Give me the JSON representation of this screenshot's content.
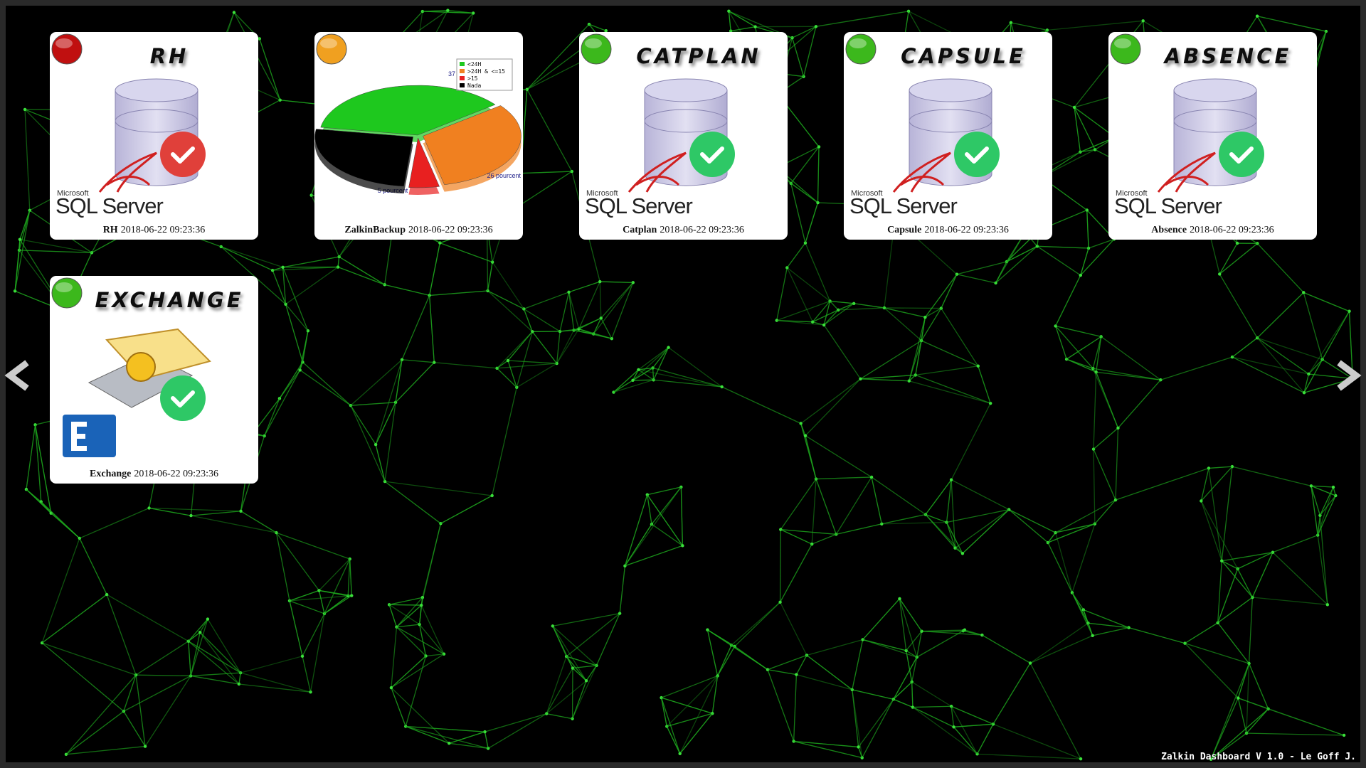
{
  "tiles": [
    {
      "status": "#c01010",
      "title": "RH",
      "icon": "sql",
      "check": "#e0403a",
      "logo": {
        "brand": "Microsoft",
        "product": "SQL Server"
      },
      "name": "RH",
      "timestamp": "2018-06-22 09:23:36"
    },
    {
      "status": "#f0a020",
      "icon": "pie",
      "name": "ZalkinBackup",
      "timestamp": "2018-06-22 09:23:36",
      "chart": {
        "type": "pie",
        "slices": [
          {
            "name": "<24H",
            "color": "#1ec81e",
            "value": 37,
            "value_label": "37"
          },
          {
            "name": ">24H & <=15",
            "color": "#f08020",
            "value": 32
          },
          {
            "name": ">15",
            "color": "#e82020",
            "value": 5,
            "value_label": "5 pourcent"
          },
          {
            "name": "Nada",
            "color": "#000000",
            "value": 26,
            "value_label": "26 pourcent"
          }
        ]
      }
    },
    {
      "status": "#3cb81c",
      "title": "CATPLAN",
      "icon": "sql",
      "check": "#2ec866",
      "logo": {
        "brand": "Microsoft",
        "product": "SQL Server"
      },
      "name": "Catplan",
      "timestamp": "2018-06-22 09:23:36"
    },
    {
      "status": "#3cb81c",
      "title": "CAPSULE",
      "icon": "sql",
      "check": "#2ec866",
      "logo": {
        "brand": "Microsoft",
        "product": "SQL Server"
      },
      "name": "Capsule",
      "timestamp": "2018-06-22 09:23:36"
    },
    {
      "status": "#3cb81c",
      "title": "ABSENCE",
      "icon": "sql",
      "check": "#2ec866",
      "logo": {
        "brand": "Microsoft",
        "product": "SQL Server"
      },
      "name": "Absence",
      "timestamp": "2018-06-22 09:23:36"
    },
    {
      "status": "#3cb81c",
      "title": "EXCHANGE",
      "icon": "exchange",
      "check": "#2ec866",
      "name": "Exchange",
      "timestamp": "2018-06-22 09:23:36"
    }
  ],
  "footer": "Zalkin Dashboard V 1.0 - Le Goff J."
}
